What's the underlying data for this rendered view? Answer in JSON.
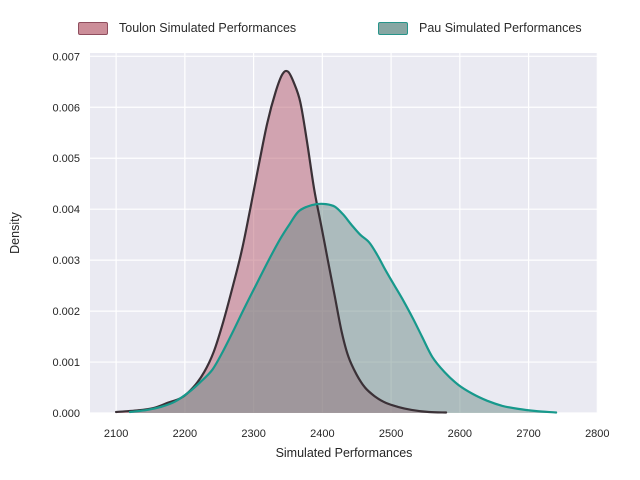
{
  "legend": {
    "items": [
      {
        "label": "Toulon Simulated Performances",
        "swatch_fill": "#cc8e99",
        "swatch_border": "#8f4e5e"
      },
      {
        "label": "Pau Simulated Performances",
        "swatch_fill": "#87a7a3",
        "swatch_border": "#27948a"
      }
    ]
  },
  "chart_data": {
    "type": "area",
    "subtype": "kde-density",
    "title": "",
    "xlabel": "Simulated Performances",
    "ylabel": "Density",
    "xlim": [
      2062,
      2801
    ],
    "ylim": [
      0,
      0.007065
    ],
    "grid": true,
    "legend_position": "top",
    "plot_background": "#eaeaf2",
    "gridline_color": "#ffffff",
    "x_tick_values": [
      2100,
      2200,
      2300,
      2400,
      2500,
      2600,
      2700,
      2800
    ],
    "x_tick_labels": [
      "2100",
      "2200",
      "2300",
      "2400",
      "2500",
      "2600",
      "2700",
      "2800"
    ],
    "y_tick_values": [
      0,
      0.001,
      0.002,
      0.003,
      0.004,
      0.005,
      0.006,
      0.007
    ],
    "y_tick_labels": [
      "0.000",
      "0.001",
      "0.002",
      "0.003",
      "0.004",
      "0.005",
      "0.006",
      "0.007"
    ],
    "series": [
      {
        "name": "Toulon Simulated Performances",
        "line_color": "#3b3137",
        "fill_color": "rgba(183,92,109,0.5)",
        "peak": {
          "x": 2350,
          "y": 0.0067
        },
        "points": [
          [
            2100,
            2e-05
          ],
          [
            2130,
            5e-05
          ],
          [
            2155,
            0.0001
          ],
          [
            2175,
            0.0002
          ],
          [
            2195,
            0.0003
          ],
          [
            2212,
            0.0005
          ],
          [
            2228,
            0.0008
          ],
          [
            2242,
            0.0012
          ],
          [
            2256,
            0.0018
          ],
          [
            2270,
            0.0025
          ],
          [
            2283,
            0.0032
          ],
          [
            2295,
            0.004
          ],
          [
            2308,
            0.0049
          ],
          [
            2320,
            0.0057
          ],
          [
            2332,
            0.0063
          ],
          [
            2342,
            0.00665
          ],
          [
            2350,
            0.0067
          ],
          [
            2358,
            0.0065
          ],
          [
            2368,
            0.0061
          ],
          [
            2378,
            0.0053
          ],
          [
            2388,
            0.0044
          ],
          [
            2398,
            0.0037
          ],
          [
            2408,
            0.003
          ],
          [
            2418,
            0.0023
          ],
          [
            2428,
            0.0016
          ],
          [
            2438,
            0.0011
          ],
          [
            2450,
            0.00075
          ],
          [
            2462,
            0.0005
          ],
          [
            2476,
            0.00033
          ],
          [
            2492,
            0.0002
          ],
          [
            2510,
            0.00012
          ],
          [
            2530,
            6e-05
          ],
          [
            2555,
            2e-05
          ],
          [
            2580,
            1e-05
          ]
        ]
      },
      {
        "name": "Pau Simulated Performances",
        "line_color": "#17998c",
        "fill_color": "rgba(109,140,136,0.5)",
        "peak": {
          "x": 2398,
          "y": 0.0041
        },
        "points": [
          [
            2120,
            2e-05
          ],
          [
            2145,
            6e-05
          ],
          [
            2165,
            0.00012
          ],
          [
            2185,
            0.00022
          ],
          [
            2205,
            0.0004
          ],
          [
            2222,
            0.0006
          ],
          [
            2240,
            0.00085
          ],
          [
            2255,
            0.0012
          ],
          [
            2270,
            0.0016
          ],
          [
            2288,
            0.0021
          ],
          [
            2305,
            0.00255
          ],
          [
            2322,
            0.003
          ],
          [
            2338,
            0.0034
          ],
          [
            2352,
            0.0037
          ],
          [
            2365,
            0.00395
          ],
          [
            2378,
            0.00405
          ],
          [
            2392,
            0.0041
          ],
          [
            2405,
            0.0041
          ],
          [
            2418,
            0.00405
          ],
          [
            2430,
            0.0039
          ],
          [
            2442,
            0.0037
          ],
          [
            2455,
            0.0035
          ],
          [
            2468,
            0.00335
          ],
          [
            2480,
            0.0031
          ],
          [
            2492,
            0.0028
          ],
          [
            2505,
            0.0025
          ],
          [
            2518,
            0.0022
          ],
          [
            2532,
            0.00185
          ],
          [
            2545,
            0.0015
          ],
          [
            2560,
            0.0011
          ],
          [
            2578,
            0.0008
          ],
          [
            2598,
            0.00055
          ],
          [
            2618,
            0.00038
          ],
          [
            2640,
            0.00024
          ],
          [
            2662,
            0.00014
          ],
          [
            2685,
            8e-05
          ],
          [
            2710,
            4e-05
          ],
          [
            2740,
            1e-05
          ]
        ]
      }
    ]
  }
}
